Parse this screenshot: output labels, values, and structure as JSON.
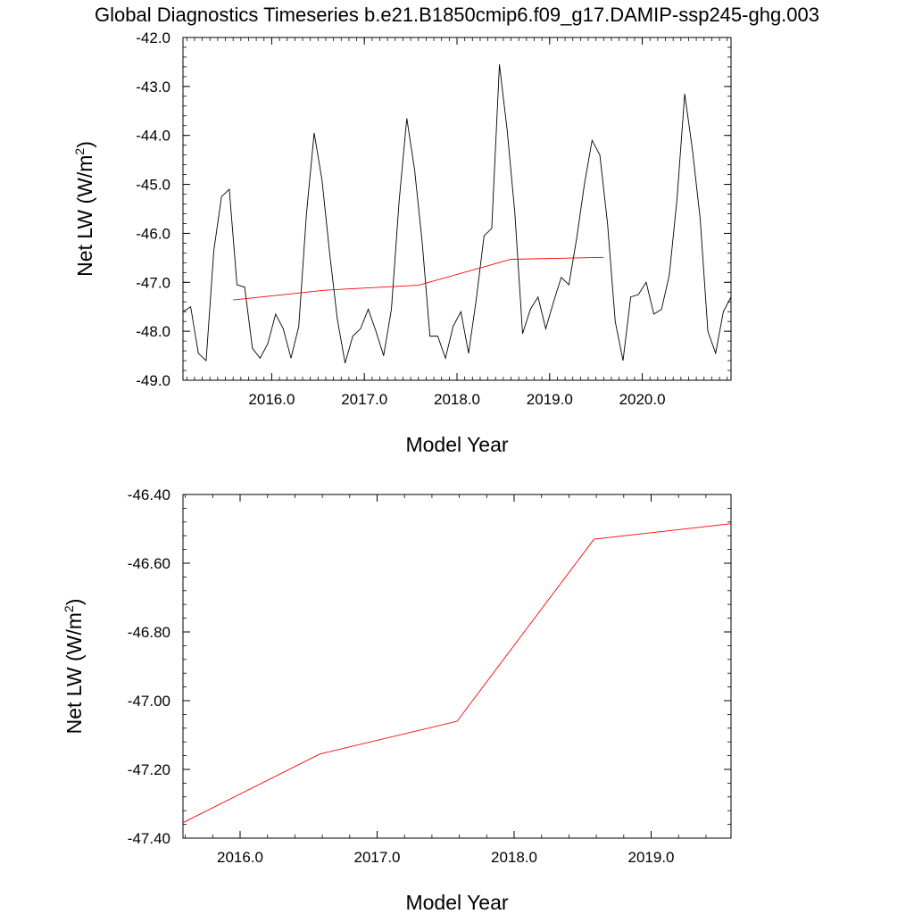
{
  "title": "Global Diagnostics Timeseries b.e21.B1850cmip6.f09_g17.DAMIP-ssp245-ghg.003",
  "colors": {
    "monthly": "#000000",
    "annual": "#ff0000",
    "axes": "#000000",
    "background": "#ffffff"
  },
  "chart_data": [
    {
      "type": "line",
      "xlabel": "Model Year",
      "ylabel": "Net LW (W/m",
      "ylabel_superscript": "2",
      "ylabel_suffix": ")",
      "xlim": [
        2015.042,
        2020.958
      ],
      "ylim": [
        -49.0,
        -42.0
      ],
      "x_ticks": [
        2016.0,
        2017.0,
        2018.0,
        2019.0,
        2020.0
      ],
      "x_tick_labels": [
        "2016.0",
        "2017.0",
        "2018.0",
        "2019.0",
        "2020.0"
      ],
      "y_ticks": [
        -42.0,
        -43.0,
        -44.0,
        -45.0,
        -46.0,
        -47.0,
        -48.0,
        -49.0
      ],
      "y_tick_labels": [
        "-42.0",
        "-43.0",
        "-44.0",
        "-45.0",
        "-46.0",
        "-47.0",
        "-48.0",
        "-49.0"
      ],
      "series": [
        {
          "color": "#000000",
          "x": [
            2015.042,
            2015.125,
            2015.208,
            2015.292,
            2015.375,
            2015.458,
            2015.542,
            2015.625,
            2015.708,
            2015.792,
            2015.875,
            2015.958,
            2016.042,
            2016.125,
            2016.208,
            2016.292,
            2016.375,
            2016.458,
            2016.542,
            2016.625,
            2016.708,
            2016.792,
            2016.875,
            2016.958,
            2017.042,
            2017.125,
            2017.208,
            2017.292,
            2017.375,
            2017.458,
            2017.542,
            2017.625,
            2017.708,
            2017.792,
            2017.875,
            2017.958,
            2018.042,
            2018.125,
            2018.208,
            2018.292,
            2018.375,
            2018.458,
            2018.542,
            2018.625,
            2018.708,
            2018.792,
            2018.875,
            2018.958,
            2019.042,
            2019.125,
            2019.208,
            2019.292,
            2019.375,
            2019.458,
            2019.542,
            2019.625,
            2019.708,
            2019.792,
            2019.875,
            2019.958,
            2020.042,
            2020.125,
            2020.208,
            2020.292,
            2020.375,
            2020.458,
            2020.542,
            2020.625,
            2020.708,
            2020.792,
            2020.875,
            2020.958
          ],
          "y": [
            -47.6,
            -47.5,
            -48.45,
            -48.6,
            -46.35,
            -45.25,
            -45.1,
            -47.05,
            -47.1,
            -48.35,
            -48.55,
            -48.25,
            -47.65,
            -47.95,
            -48.55,
            -47.9,
            -45.6,
            -43.95,
            -44.9,
            -46.4,
            -47.75,
            -48.65,
            -48.1,
            -47.95,
            -47.55,
            -48.0,
            -48.5,
            -47.55,
            -45.35,
            -43.65,
            -44.7,
            -46.2,
            -48.1,
            -48.1,
            -48.55,
            -47.9,
            -47.6,
            -48.45,
            -47.35,
            -46.05,
            -45.9,
            -42.55,
            -43.9,
            -45.6,
            -48.05,
            -47.55,
            -47.3,
            -47.95,
            -47.4,
            -46.9,
            -47.05,
            -46.1,
            -45.0,
            -44.1,
            -44.4,
            -45.8,
            -47.8,
            -48.6,
            -47.3,
            -47.25,
            -47.0,
            -47.65,
            -47.55,
            -46.85,
            -45.3,
            -43.15,
            -44.3,
            -45.7,
            -48.0,
            -48.45,
            -47.6,
            -47.3
          ]
        },
        {
          "color": "#ff0000",
          "x": [
            2015.583,
            2016.583,
            2017.583,
            2018.583,
            2019.583
          ],
          "y": [
            -47.36,
            -47.16,
            -47.06,
            -46.53,
            -46.49
          ]
        }
      ]
    },
    {
      "type": "line",
      "xlabel": "Model Year",
      "ylabel": "Net LW (W/m",
      "ylabel_superscript": "2",
      "ylabel_suffix": ")",
      "xlim": [
        2015.583,
        2019.583
      ],
      "ylim": [
        -47.4,
        -46.4
      ],
      "x_ticks": [
        2016.0,
        2017.0,
        2018.0,
        2019.0
      ],
      "x_tick_labels": [
        "2016.0",
        "2017.0",
        "2018.0",
        "2019.0"
      ],
      "y_ticks": [
        -46.4,
        -46.6,
        -46.8,
        -47.0,
        -47.2,
        -47.4
      ],
      "y_tick_labels": [
        "-46.40",
        "-46.60",
        "-46.80",
        "-47.00",
        "-47.20",
        "-47.40"
      ],
      "series": [
        {
          "color": "#ff0000",
          "x": [
            2015.583,
            2016.583,
            2017.583,
            2018.583,
            2019.583
          ],
          "y": [
            -47.355,
            -47.155,
            -47.06,
            -46.53,
            -46.485
          ]
        }
      ]
    }
  ]
}
